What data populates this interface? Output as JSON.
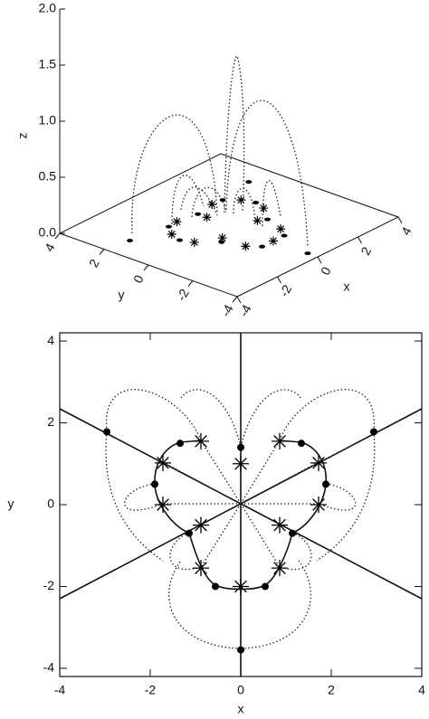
{
  "chart_data": [
    {
      "type": "surface3d",
      "xlabel": "x",
      "ylabel": "y",
      "zlabel": "z",
      "xlim": [
        -4,
        4
      ],
      "ylim": [
        -4,
        4
      ],
      "zlim": [
        0,
        2
      ],
      "xticks": [
        -4,
        -2,
        0,
        2,
        4
      ],
      "yticks": [
        -4,
        -2,
        0,
        2,
        4
      ],
      "zticks": [
        {
          "value": 0,
          "label": "0.0"
        },
        {
          "value": 0.5,
          "label": "0.5"
        },
        {
          "value": 1,
          "label": "1.0"
        },
        {
          "value": 1.5,
          "label": "1.5"
        },
        {
          "value": 2,
          "label": "2.0"
        }
      ]
    },
    {
      "type": "scatter",
      "xlabel": "x",
      "ylabel": "y",
      "xlim": [
        -4,
        4
      ],
      "ylim": [
        -4.2,
        4.2
      ],
      "xticks": [
        -4,
        -2,
        0,
        2,
        4
      ],
      "yticks": [
        -4,
        -2,
        0,
        2,
        4
      ],
      "series": [
        {
          "marker": "circle",
          "color": "#000000",
          "x": [
            -2.96,
            2.94,
            -1.34,
            1.34,
            -1.9,
            1.88,
            -1.14,
            1.14,
            0,
            -0.56,
            0.54,
            0
          ],
          "y": [
            1.78,
            1.78,
            1.5,
            1.5,
            0.5,
            0.5,
            -0.7,
            -0.7,
            1.4,
            -2,
            -2,
            -3.55
          ]
        },
        {
          "marker": "star",
          "color": "#000000",
          "x": [
            -0.88,
            0.86,
            -1.72,
            1.72,
            -1.72,
            1.72,
            -0.88,
            0.86,
            0,
            -0.88,
            0.86,
            0
          ],
          "y": [
            1.55,
            1.55,
            1.02,
            1.02,
            0,
            0,
            -0.5,
            -0.5,
            1,
            -1.55,
            -1.55,
            -2
          ]
        }
      ]
    }
  ]
}
